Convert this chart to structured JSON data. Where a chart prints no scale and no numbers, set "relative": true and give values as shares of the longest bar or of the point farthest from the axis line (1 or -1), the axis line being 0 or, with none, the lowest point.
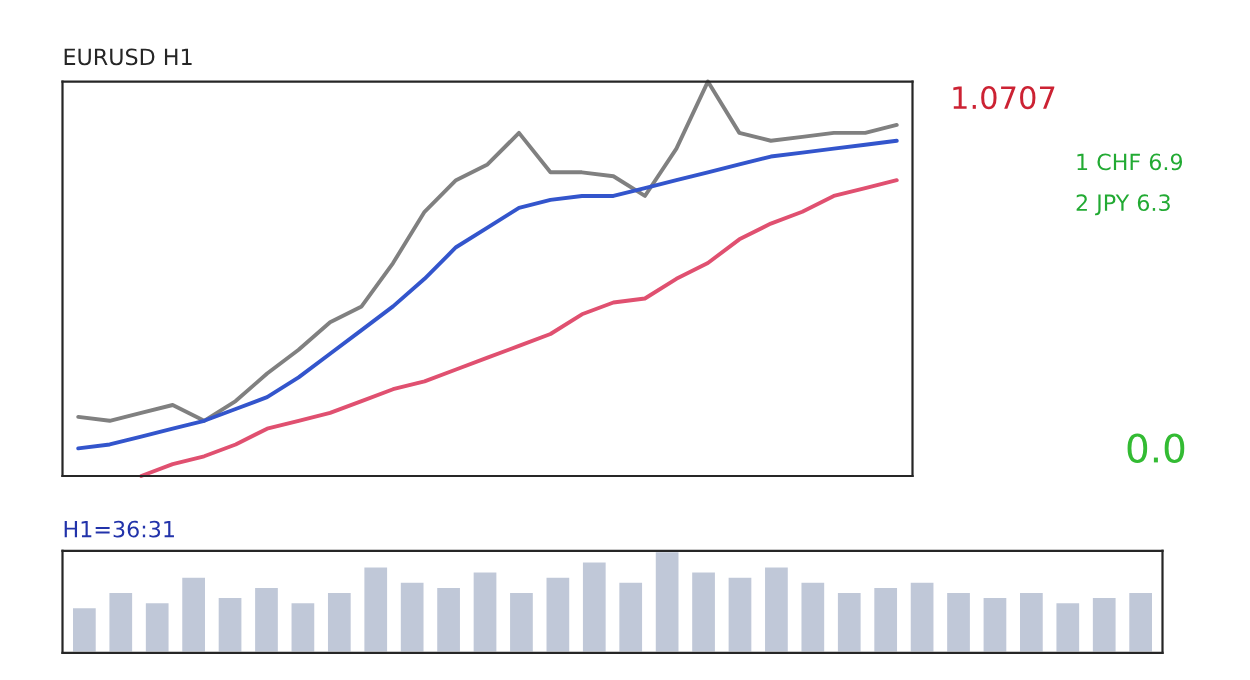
{
  "chart_data": [
    {
      "type": "line",
      "relative": true,
      "title": "EURUSD H1",
      "annotations": [
        "1.0707",
        "H1=36:31",
        "1 CHF 6.9",
        "2 JPY 6.3",
        "0.0"
      ],
      "categories": [
        null,
        null,
        null,
        null,
        null,
        null,
        null,
        null,
        null,
        null,
        null,
        null,
        null,
        null,
        null,
        null,
        null,
        null,
        null,
        null,
        null,
        null,
        null,
        null,
        null,
        null,
        null
      ],
      "series": [
        {
          "color": "#808080",
          "values": [
            0.15,
            0.14,
            0.16,
            0.18,
            0.14,
            0.19,
            0.26,
            0.32,
            0.39,
            0.43,
            0.54,
            0.67,
            0.75,
            0.79,
            0.87,
            0.77,
            0.77,
            0.76,
            0.71,
            0.83,
            1.0,
            0.87,
            0.85,
            0.86,
            0.87,
            0.87,
            0.89
          ]
        },
        {
          "color": "#3355cc",
          "values": [
            0.07,
            0.08,
            0.1,
            0.12,
            0.14,
            0.17,
            0.2,
            0.25,
            0.31,
            0.37,
            0.43,
            0.5,
            0.58,
            0.63,
            0.68,
            0.7,
            0.71,
            0.71,
            0.73,
            0.75,
            0.77,
            0.79,
            0.81,
            0.82,
            0.83,
            0.84,
            0.85
          ]
        },
        {
          "color": "#e05070",
          "values": [
            null,
            null,
            0.0,
            0.03,
            0.05,
            0.08,
            0.12,
            0.14,
            0.16,
            0.19,
            0.22,
            0.24,
            0.27,
            0.3,
            0.33,
            0.36,
            0.41,
            0.44,
            0.45,
            0.5,
            0.54,
            0.6,
            0.64,
            0.67,
            0.71,
            0.73,
            0.75
          ]
        }
      ]
    },
    {
      "type": "bar",
      "relative": true,
      "categories": [
        null,
        null,
        null,
        null,
        null,
        null,
        null,
        null,
        null,
        null,
        null,
        null,
        null,
        null,
        null,
        null,
        null,
        null,
        null,
        null,
        null,
        null,
        null,
        null,
        null,
        null,
        null,
        null,
        null,
        null
      ],
      "values": [
        0.45,
        0.6,
        0.5,
        0.75,
        0.55,
        0.65,
        0.5,
        0.6,
        0.85,
        0.7,
        0.65,
        0.8,
        0.6,
        0.75,
        0.9,
        0.7,
        1.0,
        0.8,
        0.75,
        0.85,
        0.7,
        0.6,
        0.65,
        0.7,
        0.6,
        0.55,
        0.6,
        0.5,
        0.55,
        0.6
      ],
      "color": "#c0c8d8"
    }
  ]
}
